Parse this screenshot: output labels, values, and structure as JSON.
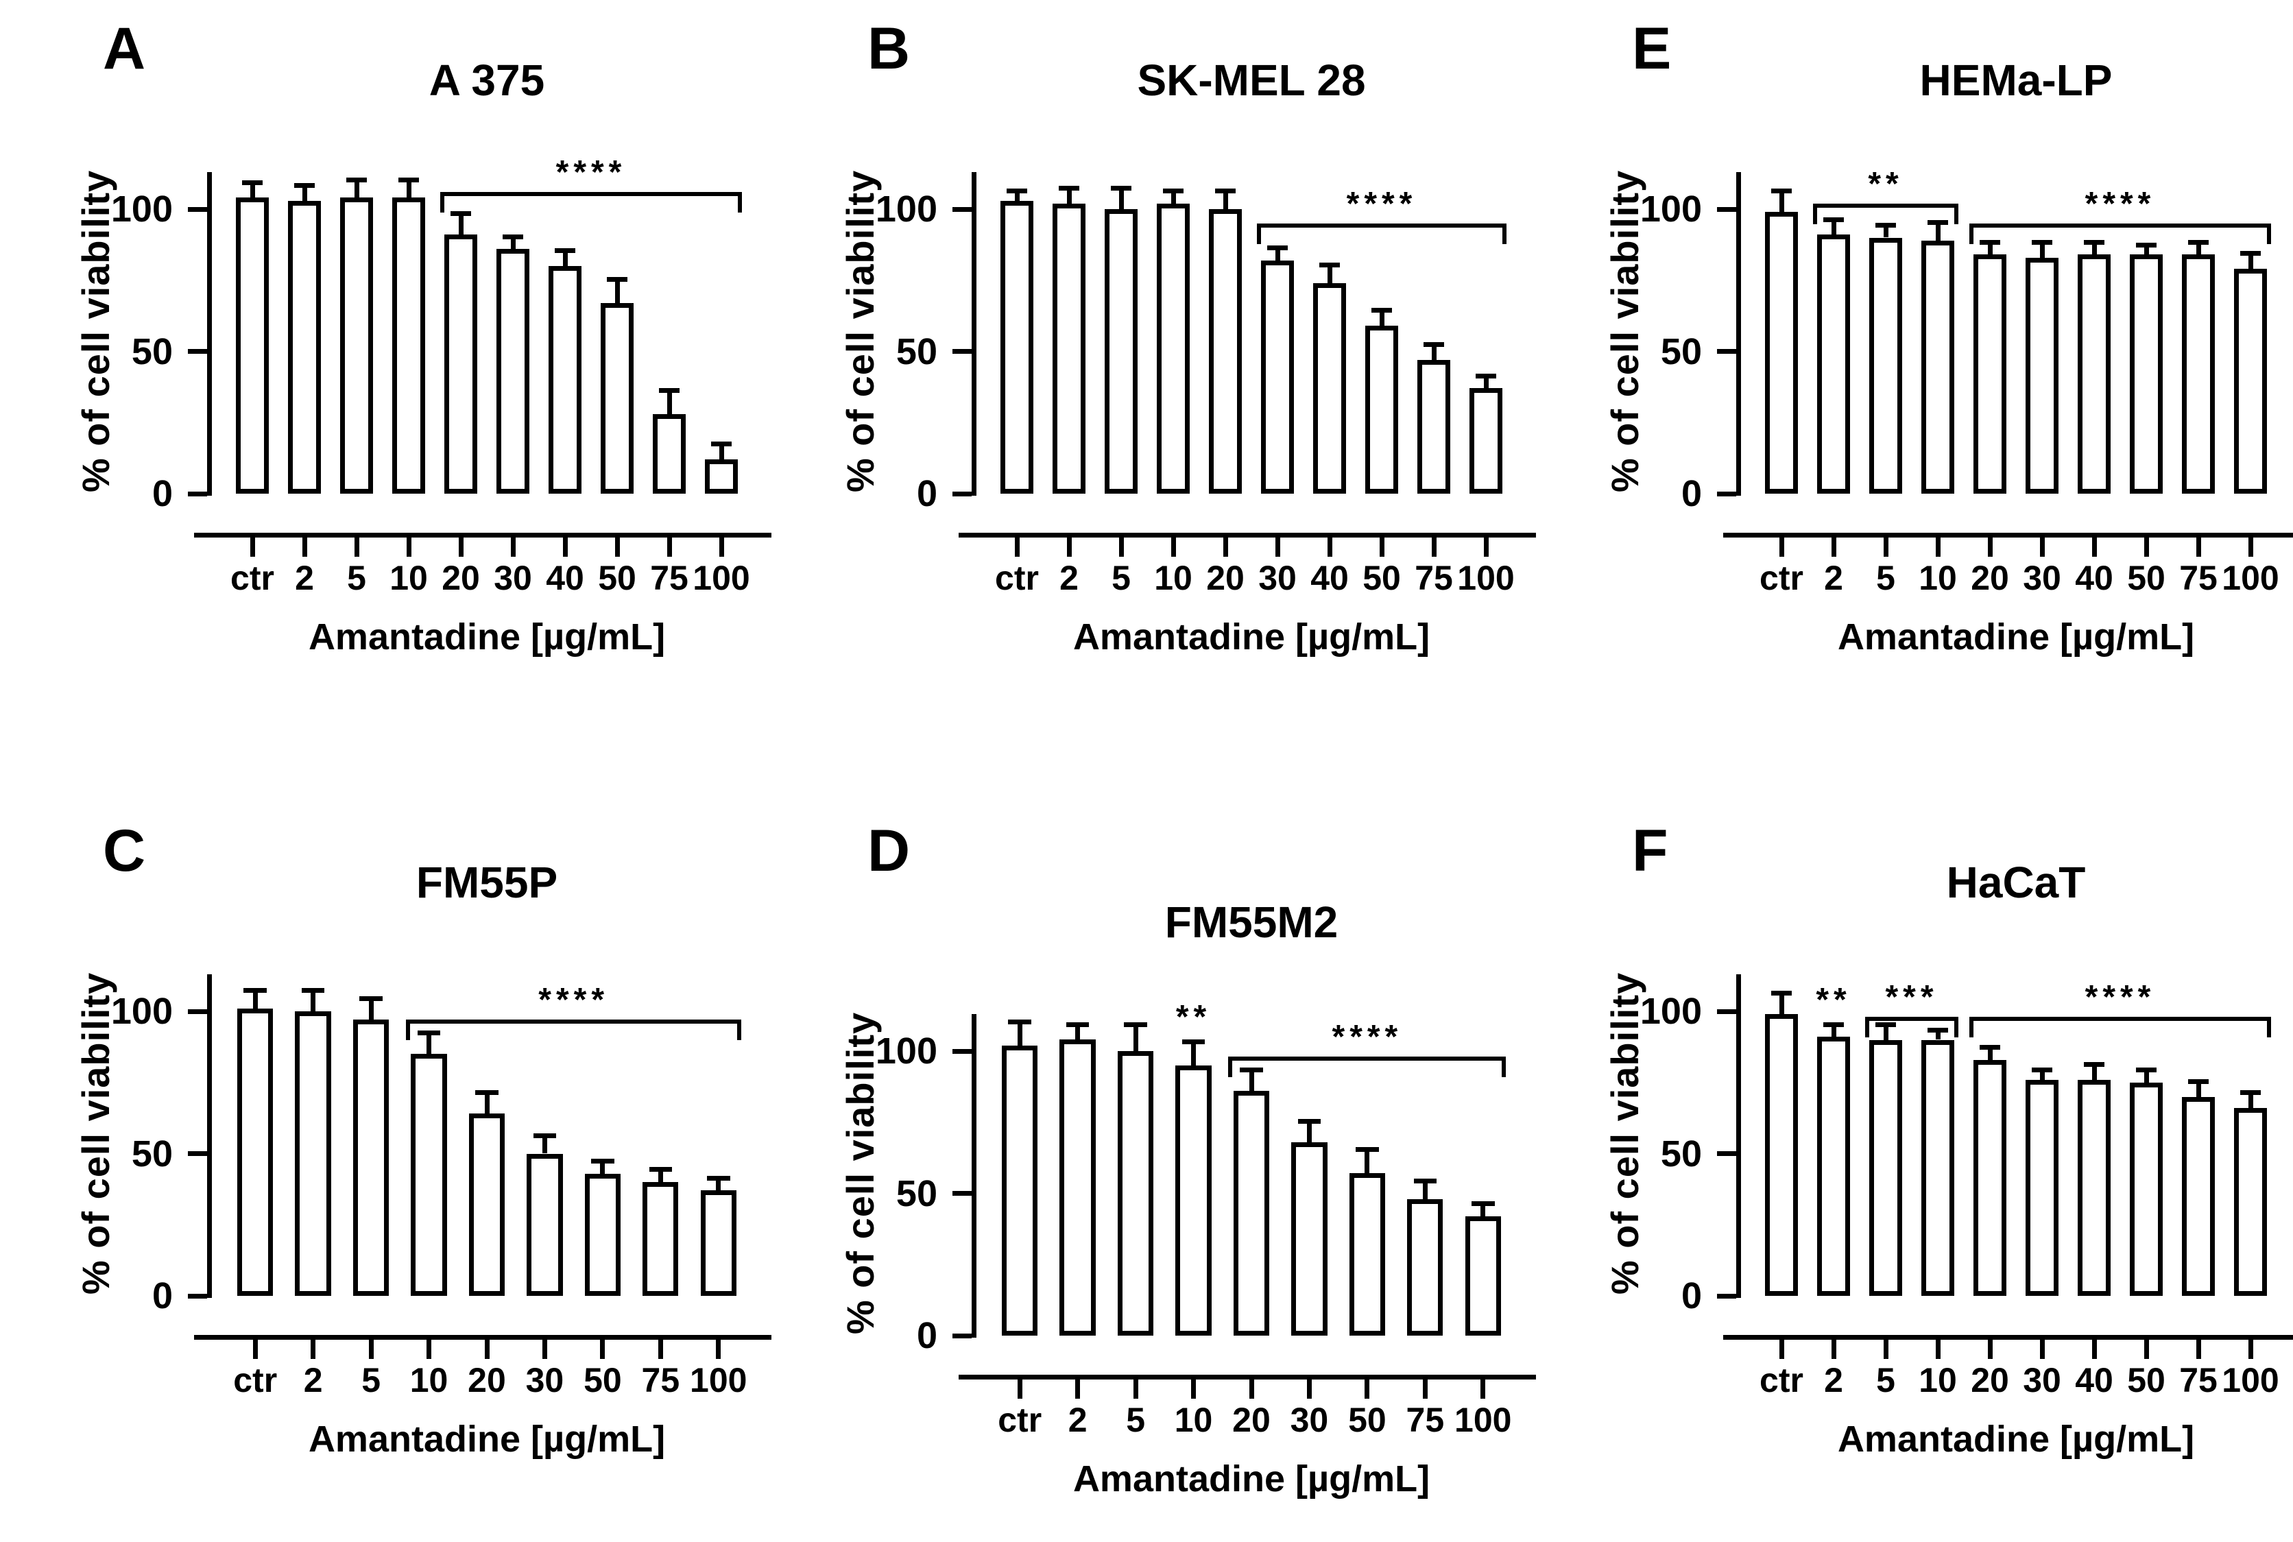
{
  "figure": {
    "background_color": "#ffffff",
    "ink_color": "#000000",
    "bar_fill_color": "#ffffff",
    "y_axis_label": "% of cell viability",
    "x_axis_label": "Amantadine [µg/mL]"
  },
  "chart_data": [
    {
      "type": "bar",
      "panel_letter": "A",
      "title": "A 375",
      "xlabel": "Amantadine [µg/mL]",
      "ylabel": "% of cell viability",
      "categories": [
        "ctr",
        "2",
        "5",
        "10",
        "20",
        "30",
        "40",
        "50",
        "75",
        "100"
      ],
      "values": [
        104,
        103,
        104,
        104,
        91,
        86,
        80,
        67,
        28,
        12
      ],
      "errors": [
        5,
        5,
        6,
        6,
        7,
        4,
        5,
        8,
        8,
        5
      ],
      "y_ticks": [
        0,
        50,
        100
      ],
      "ylim": [
        0,
        113
      ],
      "grid": false,
      "annotations": [
        {
          "kind": "bracket",
          "from": "20",
          "to": "100",
          "y": 106,
          "label": "****"
        }
      ]
    },
    {
      "type": "bar",
      "panel_letter": "B",
      "title": "SK-MEL 28",
      "xlabel": "Amantadine [µg/mL]",
      "ylabel": "% of cell viability",
      "categories": [
        "ctr",
        "2",
        "5",
        "10",
        "20",
        "30",
        "40",
        "50",
        "75",
        "100"
      ],
      "values": [
        103,
        102,
        100,
        102,
        100,
        82,
        74,
        59,
        47,
        37
      ],
      "errors": [
        3,
        5,
        7,
        4,
        6,
        4,
        6,
        5,
        5,
        4
      ],
      "y_ticks": [
        0,
        50,
        100
      ],
      "ylim": [
        0,
        113
      ],
      "grid": false,
      "annotations": [
        {
          "kind": "bracket",
          "from": "30",
          "to": "100",
          "y": 95,
          "label": "****"
        }
      ]
    },
    {
      "type": "bar",
      "panel_letter": "E",
      "title": "HEMa-LP",
      "xlabel": "Amantadine [µg/mL]",
      "ylabel": "% of cell viability",
      "categories": [
        "ctr",
        "2",
        "5",
        "10",
        "20",
        "30",
        "40",
        "50",
        "75",
        "100"
      ],
      "values": [
        99,
        91,
        90,
        89,
        84,
        83,
        84,
        84,
        84,
        79
      ],
      "errors": [
        7,
        5,
        4,
        6,
        4,
        5,
        4,
        3,
        4,
        5
      ],
      "y_ticks": [
        0,
        50,
        100
      ],
      "ylim": [
        0,
        113
      ],
      "grid": false,
      "annotations": [
        {
          "kind": "bracket",
          "from": "2",
          "to": "10",
          "y": 102,
          "label": "**"
        },
        {
          "kind": "bracket",
          "from": "20",
          "to": "100",
          "y": 95,
          "label": "****"
        }
      ]
    },
    {
      "type": "bar",
      "panel_letter": "C",
      "title": "FM55P",
      "xlabel": "Amantadine [µg/mL]",
      "ylabel": "% of cell viability",
      "categories": [
        "ctr",
        "2",
        "5",
        "10",
        "20",
        "30",
        "50",
        "75",
        "100"
      ],
      "values": [
        101,
        100,
        97,
        85,
        64,
        50,
        43,
        40,
        37
      ],
      "errors": [
        6,
        7,
        7,
        7,
        7,
        6,
        4,
        4,
        4
      ],
      "y_ticks": [
        0,
        50,
        100
      ],
      "ylim": [
        0,
        113
      ],
      "grid": false,
      "annotations": [
        {
          "kind": "bracket",
          "from": "10",
          "to": "100",
          "y": 97,
          "label": "****"
        }
      ]
    },
    {
      "type": "bar",
      "panel_letter": "D",
      "title": "FM55M2",
      "xlabel": "Amantadine [µg/mL]",
      "ylabel": "% of cell viability",
      "categories": [
        "ctr",
        "2",
        "5",
        "10",
        "20",
        "30",
        "50",
        "75",
        "100"
      ],
      "values": [
        102,
        104,
        100,
        95,
        86,
        68,
        57,
        48,
        42
      ],
      "errors": [
        8,
        5,
        9,
        8,
        7,
        7,
        8,
        6,
        4
      ],
      "y_ticks": [
        0,
        50,
        100
      ],
      "ylim": [
        0,
        113
      ],
      "grid": false,
      "annotations": [
        {
          "kind": "stars",
          "at": "10",
          "y": 105,
          "label": "**"
        },
        {
          "kind": "bracket",
          "from": "20",
          "to": "100",
          "y": 98,
          "label": "****"
        }
      ]
    },
    {
      "type": "bar",
      "panel_letter": "F",
      "title": "HaCaT",
      "xlabel": "Amantadine [µg/mL]",
      "ylabel": "% of cell viability",
      "categories": [
        "ctr",
        "2",
        "5",
        "10",
        "20",
        "30",
        "40",
        "50",
        "75",
        "100"
      ],
      "values": [
        99,
        91,
        90,
        90,
        83,
        76,
        76,
        75,
        70,
        66
      ],
      "errors": [
        7,
        4,
        5,
        3,
        4,
        3,
        5,
        4,
        5,
        5
      ],
      "y_ticks": [
        0,
        50,
        100
      ],
      "ylim": [
        0,
        113
      ],
      "grid": false,
      "annotations": [
        {
          "kind": "stars",
          "at": "2",
          "y": 97,
          "label": "**"
        },
        {
          "kind": "bracket",
          "from": "5",
          "to": "10",
          "y": 98,
          "label": "***"
        },
        {
          "kind": "bracket",
          "from": "20",
          "to": "100",
          "y": 98,
          "label": "****"
        }
      ]
    }
  ]
}
